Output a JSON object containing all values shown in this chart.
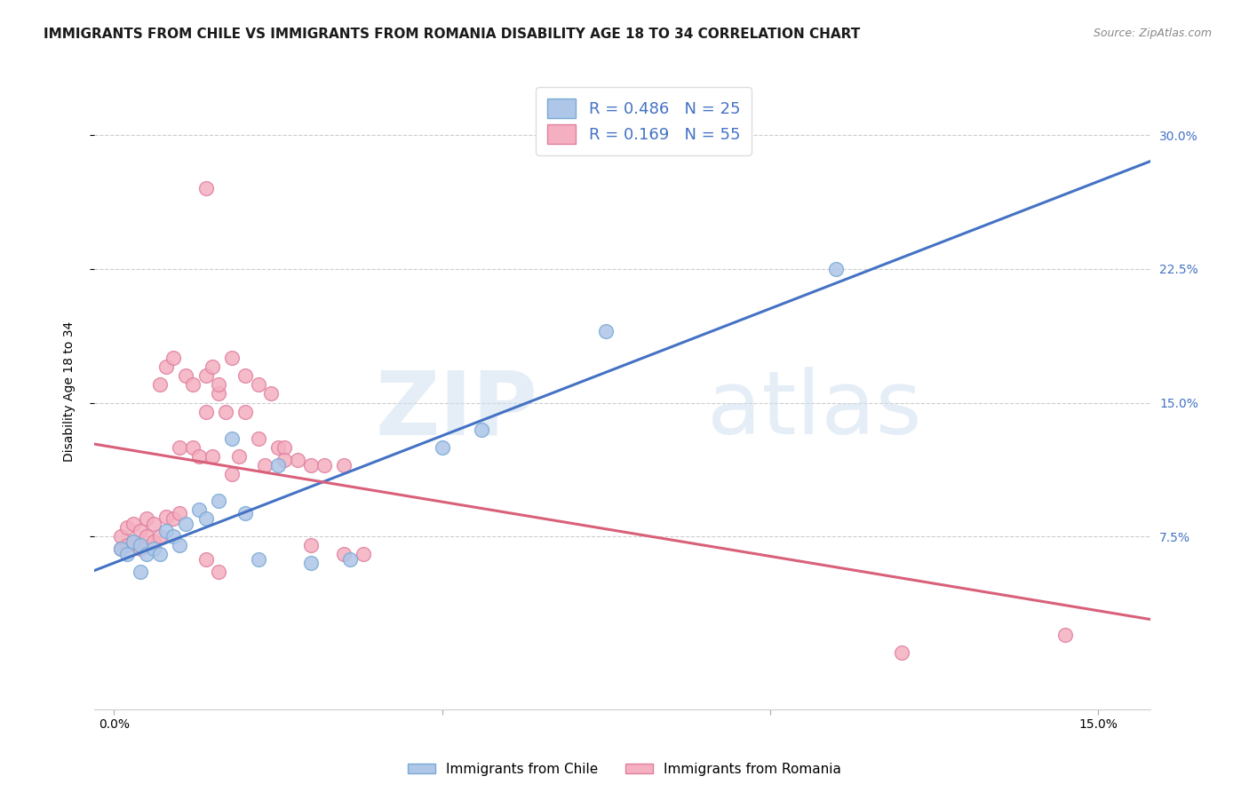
{
  "title": "IMMIGRANTS FROM CHILE VS IMMIGRANTS FROM ROMANIA DISABILITY AGE 18 TO 34 CORRELATION CHART",
  "source": "Source: ZipAtlas.com",
  "ylabel": "Disability Age 18 to 34",
  "x_tick_positions": [
    0.0,
    0.05,
    0.1,
    0.15
  ],
  "x_tick_labels": [
    "0.0%",
    "",
    "",
    "15.0%"
  ],
  "y_ticks": [
    0.075,
    0.15,
    0.225,
    0.3
  ],
  "y_tick_labels": [
    "7.5%",
    "15.0%",
    "22.5%",
    "30.0%"
  ],
  "xlim": [
    -0.003,
    0.158
  ],
  "ylim": [
    -0.022,
    0.335
  ],
  "color_chile": "#aec6e8",
  "color_romania": "#f4afc0",
  "line_color_chile": "#4472c4",
  "line_color_romania": "#d9607a",
  "edge_chile": "#7aaad4",
  "edge_romania": "#e080a0",
  "chile_x": [
    0.001,
    0.002,
    0.003,
    0.004,
    0.004,
    0.005,
    0.006,
    0.007,
    0.008,
    0.009,
    0.01,
    0.011,
    0.013,
    0.014,
    0.016,
    0.018,
    0.02,
    0.022,
    0.025,
    0.03,
    0.036,
    0.05,
    0.056,
    0.075,
    0.11
  ],
  "chile_y": [
    0.068,
    0.065,
    0.072,
    0.07,
    0.055,
    0.065,
    0.068,
    0.065,
    0.078,
    0.075,
    0.07,
    0.082,
    0.09,
    0.085,
    0.095,
    0.13,
    0.088,
    0.062,
    0.115,
    0.06,
    0.062,
    0.125,
    0.135,
    0.19,
    0.225
  ],
  "romania_x": [
    0.001,
    0.001,
    0.002,
    0.002,
    0.003,
    0.003,
    0.004,
    0.004,
    0.005,
    0.005,
    0.006,
    0.006,
    0.007,
    0.007,
    0.008,
    0.008,
    0.009,
    0.009,
    0.01,
    0.01,
    0.011,
    0.012,
    0.012,
    0.013,
    0.014,
    0.014,
    0.015,
    0.016,
    0.017,
    0.018,
    0.019,
    0.02,
    0.022,
    0.023,
    0.025,
    0.026,
    0.028,
    0.03,
    0.032,
    0.035,
    0.015,
    0.016,
    0.018,
    0.02,
    0.022,
    0.024,
    0.026,
    0.03,
    0.035,
    0.038,
    0.014,
    0.016,
    0.014,
    0.12,
    0.145
  ],
  "romania_y": [
    0.075,
    0.068,
    0.08,
    0.07,
    0.082,
    0.072,
    0.078,
    0.068,
    0.085,
    0.075,
    0.082,
    0.072,
    0.16,
    0.075,
    0.086,
    0.17,
    0.085,
    0.175,
    0.088,
    0.125,
    0.165,
    0.16,
    0.125,
    0.12,
    0.165,
    0.145,
    0.12,
    0.155,
    0.145,
    0.11,
    0.12,
    0.145,
    0.13,
    0.115,
    0.125,
    0.125,
    0.118,
    0.115,
    0.115,
    0.115,
    0.17,
    0.16,
    0.175,
    0.165,
    0.16,
    0.155,
    0.118,
    0.07,
    0.065,
    0.065,
    0.062,
    0.055,
    0.27,
    0.01,
    0.02
  ],
  "legend_chile": "R = 0.486   N = 25",
  "legend_romania": "R = 0.169   N = 55",
  "background_color": "#ffffff",
  "grid_color": "#cccccc",
  "title_fontsize": 11,
  "axis_label_fontsize": 10,
  "tick_fontsize": 10,
  "legend_fontsize": 13,
  "source_fontsize": 9
}
